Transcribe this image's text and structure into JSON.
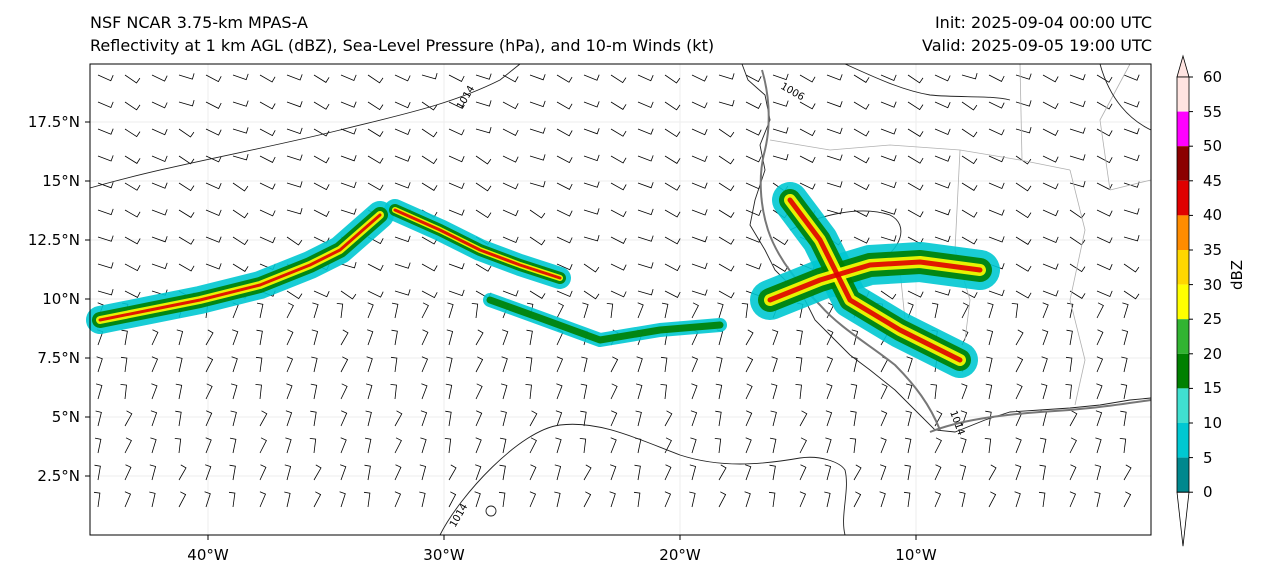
{
  "header": {
    "left_line1": "NSF NCAR 3.75-km MPAS-A",
    "left_line2": "Reflectivity at 1 km AGL (dBZ), Sea-Level Pressure (hPa), and 10-m Winds (kt)",
    "right_line1": "Init: 2025-09-04 00:00 UTC",
    "right_line2": "Valid: 2025-09-05 19:00 UTC"
  },
  "axes": {
    "lat_labels": [
      "17.5°N",
      "15°N",
      "12.5°N",
      "10°N",
      "7.5°N",
      "5°N",
      "2.5°N"
    ],
    "lon_labels": [
      "40°W",
      "30°W",
      "20°W",
      "10°W"
    ]
  },
  "isobars": {
    "label_a": "1014",
    "label_b": "1006",
    "label_c": "1014",
    "label_d": "1014"
  },
  "colorbar": {
    "title": "dBZ",
    "ticks": [
      "0",
      "5",
      "10",
      "15",
      "20",
      "25",
      "30",
      "35",
      "40",
      "45",
      "50",
      "55",
      "60"
    ],
    "colors": [
      "#ffffff",
      "#00888e",
      "#00c8d2",
      "#40e0d0",
      "#008000",
      "#32b432",
      "#ffff00",
      "#ffd700",
      "#ff8c00",
      "#e00000",
      "#8b0000",
      "#ff00ff",
      "#ffe4e1"
    ]
  }
}
